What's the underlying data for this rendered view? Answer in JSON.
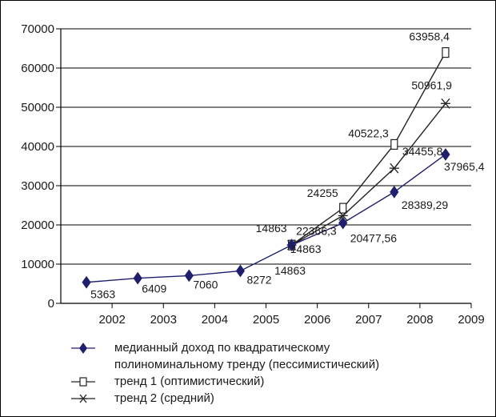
{
  "chart_data": {
    "type": "line",
    "title": "",
    "xlabel": "",
    "ylabel": "",
    "x": [
      2001.5,
      2002.5,
      2003.5,
      2004.5,
      2005.5,
      2006.5,
      2007.5,
      2008.5
    ],
    "xlim": [
      2001,
      2009
    ],
    "ylim": [
      0,
      70000
    ],
    "xticks": [
      "2002",
      "2003",
      "2004",
      "2005",
      "2006",
      "2007",
      "2008",
      "2009"
    ],
    "yticks": [
      "0",
      "10000",
      "20000",
      "30000",
      "40000",
      "50000",
      "60000",
      "70000"
    ],
    "grid": "horizontal",
    "legend_position": "bottom",
    "series": [
      {
        "name": "медианный доход по квадратическому полиноминальному тренду (пессимистический)",
        "marker": "diamond",
        "color": "#1f1f6e",
        "x": [
          2001.5,
          2002.5,
          2003.5,
          2004.5,
          2005.5,
          2006.5,
          2007.5,
          2008.5
        ],
        "values": [
          5363,
          6409,
          7060,
          8272,
          14863,
          20477.56,
          28389.29,
          37965.4
        ],
        "labels": [
          "5363",
          "6409",
          "7060",
          "8272",
          "14863",
          "20477,56",
          "28389,29",
          "37965,4"
        ]
      },
      {
        "name": "тренд 1 (оптимистический)",
        "marker": "square",
        "color": "#222222",
        "x": [
          2005.5,
          2006.5,
          2007.5,
          2008.5
        ],
        "values": [
          14863,
          24255,
          40522.3,
          63958.4
        ],
        "labels": [
          "14863",
          "24255",
          "40522,3",
          "63958,4"
        ]
      },
      {
        "name": "тренд 2 (средний)",
        "marker": "star",
        "color": "#222222",
        "x": [
          2005.5,
          2006.5,
          2007.5,
          2008.5
        ],
        "values": [
          14863,
          22366.3,
          34455.8,
          50961.9
        ],
        "labels": [
          "14863",
          "22366,3",
          "34455,8",
          "50961,9"
        ]
      }
    ],
    "legend": [
      {
        "symbol": "diamond",
        "lines": [
          "медианный доход по квадратическому",
          "полиноминальному тренду (пессимистический)"
        ]
      },
      {
        "symbol": "square",
        "lines": [
          "тренд 1 (оптимистический)"
        ]
      },
      {
        "symbol": "star",
        "lines": [
          "тренд 2 (средний)"
        ]
      }
    ]
  }
}
